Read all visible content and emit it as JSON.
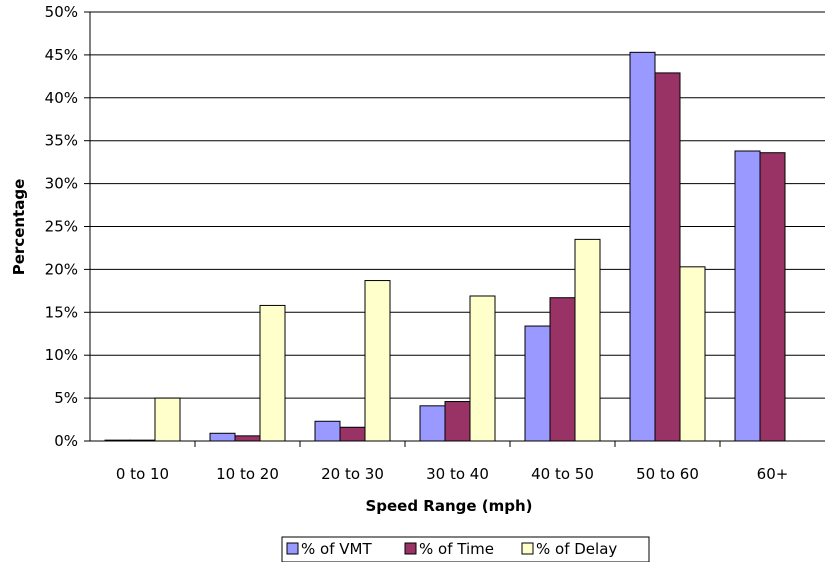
{
  "chart_data": {
    "type": "bar",
    "xlabel": "Speed Range (mph)",
    "ylabel": "Percentage",
    "ylim": [
      0,
      50
    ],
    "y_ticks": [
      "0%",
      "5%",
      "10%",
      "15%",
      "20%",
      "25%",
      "30%",
      "35%",
      "40%",
      "45%",
      "50%"
    ],
    "categories": [
      "0 to 10",
      "10 to 20",
      "20 to 30",
      "30 to 40",
      "40 to 50",
      "50 to 60",
      "60+"
    ],
    "series": [
      {
        "name": "% of VMT",
        "color": "#9999ff",
        "values": [
          0.1,
          0.9,
          2.3,
          4.1,
          13.4,
          45.3,
          33.8
        ]
      },
      {
        "name": "% of Time",
        "color": "#993366",
        "values": [
          0.1,
          0.6,
          1.6,
          4.6,
          16.7,
          42.9,
          33.6
        ]
      },
      {
        "name": "% of Delay",
        "color": "#ffffcc",
        "values": [
          5.0,
          15.8,
          18.7,
          16.9,
          23.5,
          20.3,
          0
        ]
      }
    ],
    "grid": true,
    "legend_position": "bottom"
  }
}
